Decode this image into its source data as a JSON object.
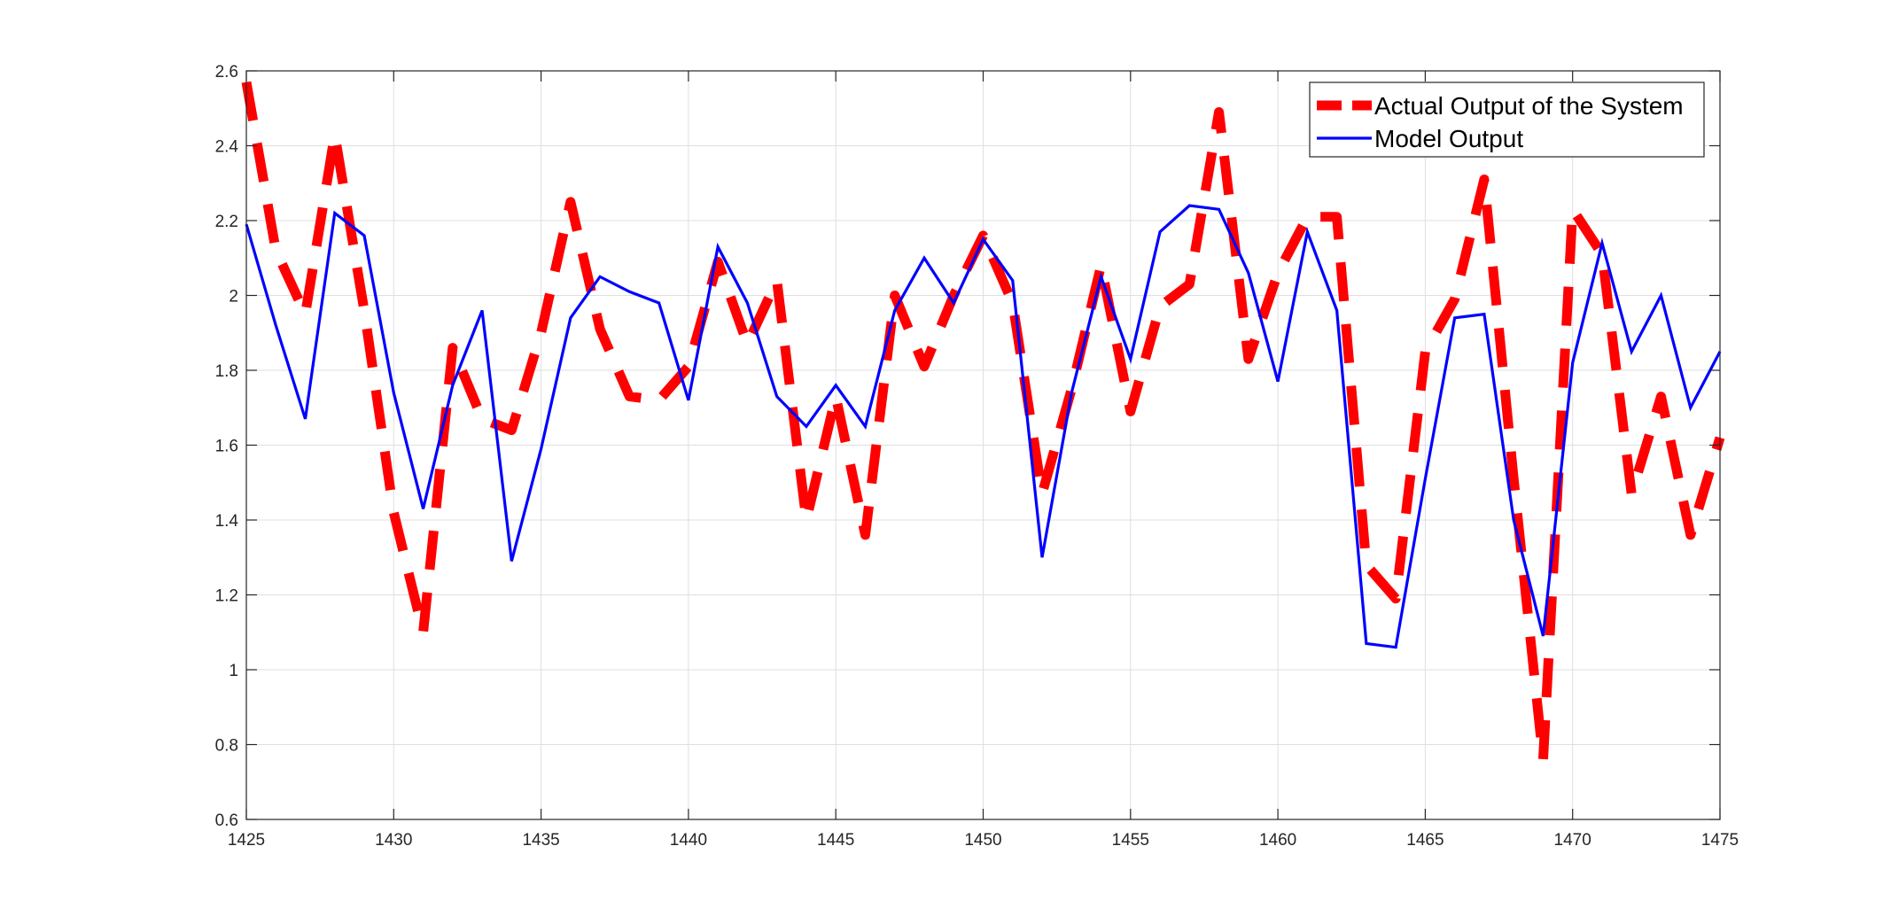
{
  "chart_data": {
    "type": "line",
    "title": "",
    "xlabel": "",
    "ylabel": "",
    "xlim": [
      1425,
      1475
    ],
    "ylim": [
      0.6,
      2.6
    ],
    "xticks": [
      1425,
      1430,
      1435,
      1440,
      1445,
      1450,
      1455,
      1460,
      1465,
      1470,
      1475
    ],
    "xtick_labels": [
      "1425",
      "1430",
      "1435",
      "1440",
      "1445",
      "1450",
      "1455",
      "1460",
      "1465",
      "1470",
      "1475"
    ],
    "yticks": [
      0.6,
      0.8,
      1.0,
      1.2,
      1.4,
      1.6,
      1.8,
      2.0,
      2.2,
      2.4,
      2.6
    ],
    "ytick_labels": [
      "0.6",
      "0.8",
      "1",
      "1.2",
      "1.4",
      "1.6",
      "1.8",
      "2",
      "2.2",
      "2.4",
      "2.6"
    ],
    "grid": true,
    "legend_position": "top-right",
    "x": [
      1425,
      1426,
      1427,
      1428,
      1429,
      1430,
      1431,
      1432,
      1433,
      1434,
      1435,
      1436,
      1437,
      1438,
      1439,
      1440,
      1441,
      1442,
      1443,
      1444,
      1445,
      1446,
      1447,
      1448,
      1449,
      1450,
      1451,
      1452,
      1453,
      1454,
      1455,
      1456,
      1457,
      1458,
      1459,
      1460,
      1461,
      1462,
      1463,
      1464,
      1465,
      1466,
      1467,
      1468,
      1469,
      1470,
      1471,
      1472,
      1473,
      1474,
      1475
    ],
    "series": [
      {
        "name": "Actual Output of the System",
        "color": "#ff0000",
        "style": "dashed",
        "values": [
          2.57,
          2.12,
          1.95,
          2.43,
          1.96,
          1.42,
          1.1,
          1.86,
          1.67,
          1.64,
          1.9,
          2.25,
          1.91,
          1.73,
          1.72,
          1.81,
          2.09,
          1.87,
          2.04,
          1.4,
          1.73,
          1.36,
          2.0,
          1.81,
          2.0,
          2.16,
          1.98,
          1.47,
          1.75,
          2.08,
          1.69,
          1.97,
          2.03,
          2.49,
          1.83,
          2.06,
          2.21,
          2.21,
          1.28,
          1.19,
          1.85,
          1.99,
          2.31,
          1.51,
          0.76,
          2.23,
          2.11,
          1.47,
          1.73,
          1.36,
          1.62
        ]
      },
      {
        "name": "Model Output",
        "color": "#0000ff",
        "style": "solid",
        "values": [
          2.19,
          1.92,
          1.67,
          2.22,
          2.16,
          1.74,
          1.43,
          1.76,
          1.96,
          1.29,
          1.59,
          1.94,
          2.05,
          2.01,
          1.98,
          1.72,
          2.13,
          1.98,
          1.73,
          1.65,
          1.76,
          1.65,
          1.96,
          2.1,
          1.98,
          2.15,
          2.04,
          1.3,
          1.74,
          2.05,
          1.83,
          2.17,
          2.24,
          2.23,
          2.06,
          1.77,
          2.17,
          1.96,
          1.07,
          1.06,
          1.51,
          1.94,
          1.95,
          1.4,
          1.09,
          1.82,
          2.14,
          1.85,
          2.0,
          1.7,
          1.85
        ]
      }
    ]
  }
}
